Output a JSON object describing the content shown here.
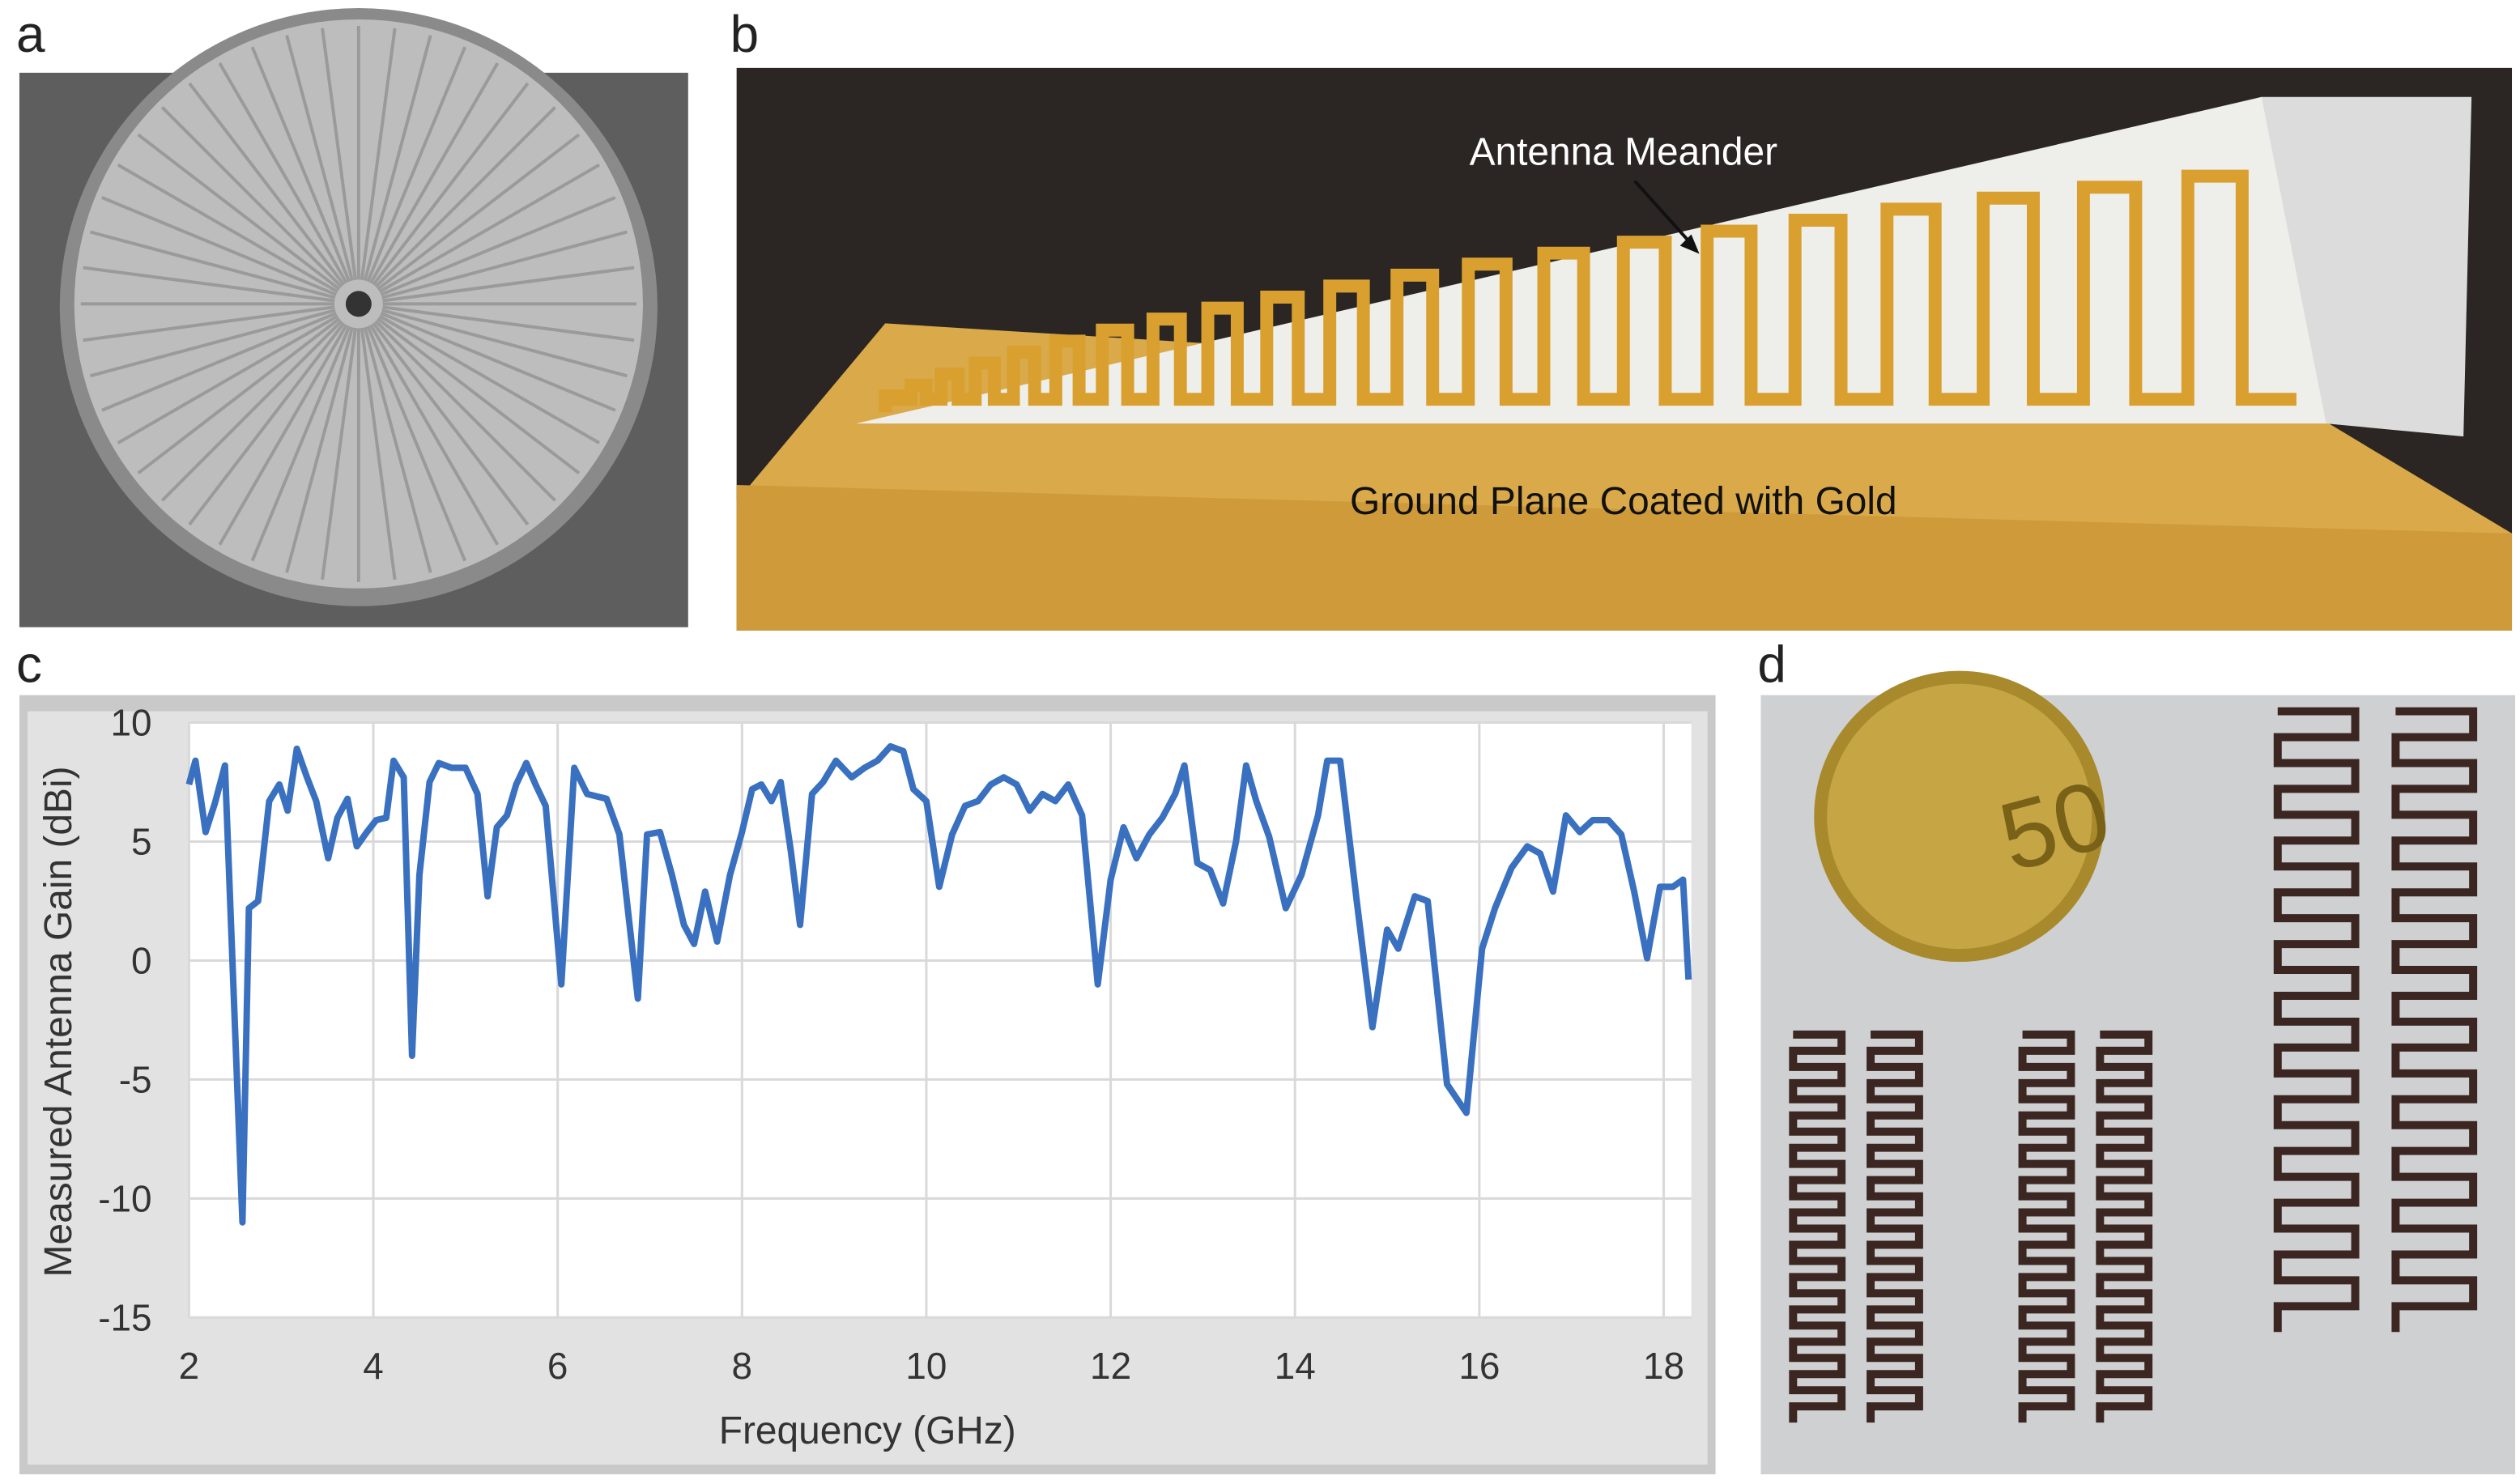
{
  "panel_labels": [
    "a",
    "b",
    "c",
    "d"
  ],
  "annotations": [
    "Antenna Meander",
    "Ground Plane Coated with Gold"
  ],
  "chart_data": {
    "type": "line",
    "x_label": "Frequency (GHz)",
    "y_label": "Measured Antenna Gain (dBi)",
    "color": "#3a70c0",
    "grid": true,
    "xlim": [
      2,
      18.3
    ],
    "ylim": [
      -15,
      10
    ],
    "xticks": [
      2,
      4,
      6,
      8,
      10,
      12,
      14,
      16,
      18
    ],
    "yticks": [
      -15,
      -10,
      -5,
      0,
      5,
      10
    ],
    "x": [
      2.0,
      2.07,
      2.18,
      2.28,
      2.39,
      2.58,
      2.65,
      2.75,
      2.87,
      2.98,
      3.07,
      3.17,
      3.28,
      3.38,
      3.51,
      3.61,
      3.72,
      3.82,
      3.93,
      4.03,
      4.14,
      4.22,
      4.33,
      4.42,
      4.5,
      4.61,
      4.71,
      4.85,
      5.0,
      5.13,
      5.24,
      5.34,
      5.45,
      5.55,
      5.66,
      5.76,
      5.87,
      6.04,
      6.18,
      6.32,
      6.53,
      6.67,
      6.87,
      6.97,
      7.11,
      7.24,
      7.37,
      7.48,
      7.6,
      7.73,
      7.87,
      8.0,
      8.11,
      8.21,
      8.32,
      8.42,
      8.53,
      8.63,
      8.76,
      8.88,
      9.02,
      9.19,
      9.33,
      9.47,
      9.61,
      9.75,
      9.86,
      10.0,
      10.14,
      10.28,
      10.42,
      10.56,
      10.7,
      10.84,
      10.98,
      11.12,
      11.26,
      11.4,
      11.54,
      11.69,
      11.86,
      12.0,
      12.14,
      12.28,
      12.42,
      12.56,
      12.7,
      12.8,
      12.94,
      13.08,
      13.22,
      13.36,
      13.47,
      13.58,
      13.72,
      13.9,
      14.07,
      14.25,
      14.35,
      14.49,
      14.67,
      14.84,
      15.0,
      15.12,
      15.3,
      15.44,
      15.65,
      15.86,
      16.03,
      16.17,
      16.35,
      16.52,
      16.66,
      16.8,
      16.94,
      17.09,
      17.23,
      17.4,
      17.54,
      17.68,
      17.82,
      17.96,
      18.1,
      18.21,
      18.27
    ],
    "values": [
      7.4,
      8.4,
      5.4,
      6.6,
      8.2,
      -11,
      2.2,
      2.5,
      6.7,
      7.4,
      6.3,
      8.9,
      7.7,
      6.7,
      4.3,
      6.0,
      6.8,
      4.8,
      5.4,
      5.9,
      6.0,
      8.4,
      7.7,
      -4.0,
      3.6,
      7.5,
      8.3,
      8.1,
      8.1,
      7.0,
      2.7,
      5.6,
      6.1,
      7.4,
      8.3,
      7.4,
      6.5,
      -1.0,
      8.1,
      7.0,
      6.8,
      5.3,
      -1.6,
      5.3,
      5.4,
      3.6,
      1.5,
      0.7,
      2.9,
      0.8,
      3.6,
      5.4,
      7.2,
      7.4,
      6.7,
      7.5,
      4.6,
      1.5,
      7.0,
      7.5,
      8.4,
      7.7,
      8.1,
      8.4,
      9.0,
      8.8,
      7.2,
      6.7,
      3.1,
      5.3,
      6.5,
      6.7,
      7.4,
      7.7,
      7.4,
      6.3,
      7.0,
      6.7,
      7.4,
      6.1,
      -1.0,
      3.4,
      5.6,
      4.3,
      5.3,
      6.0,
      7.0,
      8.2,
      4.1,
      3.8,
      2.4,
      5.0,
      8.2,
      6.7,
      5.2,
      2.2,
      3.6,
      6.1,
      8.4,
      8.4,
      2.5,
      -2.8,
      1.3,
      0.5,
      2.7,
      2.5,
      -5.2,
      -6.4,
      0.5,
      2.2,
      3.9,
      4.8,
      4.5,
      2.9,
      6.1,
      5.4,
      5.9,
      5.9,
      5.3,
      2.9,
      0.1,
      3.1,
      3.1,
      3.4,
      -0.8
    ]
  }
}
